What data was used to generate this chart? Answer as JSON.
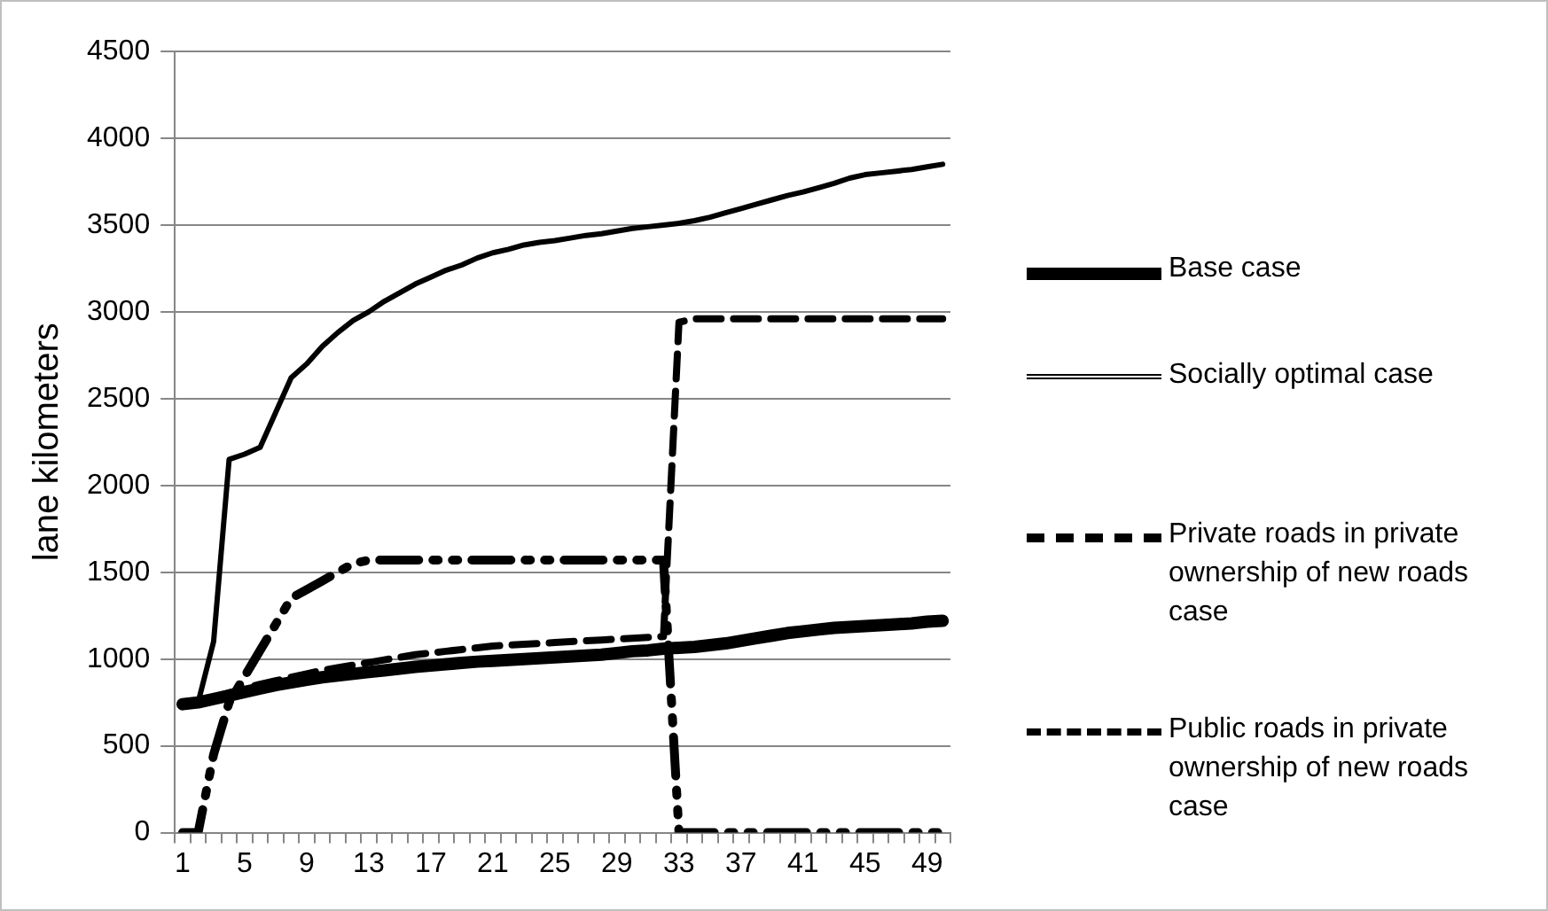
{
  "chart_data": {
    "type": "line",
    "ylabel": "lane kilometers",
    "categories": [
      "1",
      null,
      null,
      null,
      "5",
      null,
      null,
      null,
      "9",
      null,
      null,
      null,
      "13",
      null,
      null,
      null,
      "17",
      null,
      null,
      null,
      "21",
      null,
      null,
      null,
      "25",
      null,
      null,
      null,
      "29",
      null,
      null,
      null,
      "33",
      null,
      null,
      null,
      "37",
      null,
      null,
      null,
      "41",
      null,
      null,
      null,
      "45",
      null,
      null,
      null,
      "49",
      null
    ],
    "ylim": [
      0,
      4500
    ],
    "yticks": [
      0,
      500,
      1000,
      1500,
      2000,
      2500,
      3000,
      3500,
      4000,
      4500
    ],
    "grid": "y",
    "legend": "right",
    "marker": "none",
    "series": [
      {
        "name": "Base case",
        "color": "#000000",
        "line_style": "solid",
        "values": [
          740,
          750,
          770,
          790,
          810,
          830,
          850,
          865,
          880,
          895,
          905,
          915,
          925,
          935,
          945,
          955,
          962,
          970,
          978,
          985,
          990,
          995,
          1000,
          1005,
          1010,
          1015,
          1020,
          1025,
          1035,
          1045,
          1050,
          1060,
          1065,
          1070,
          1080,
          1090,
          1105,
          1120,
          1135,
          1150,
          1160,
          1170,
          1180,
          1185,
          1190,
          1195,
          1200,
          1205,
          1215,
          1220
        ]
      },
      {
        "name": "Socially optimal case",
        "color": "#000000",
        "line_style": "solid",
        "values": [
          750,
          750,
          1100,
          2150,
          2180,
          2220,
          2420,
          2620,
          2700,
          2800,
          2880,
          2950,
          3000,
          3060,
          3110,
          3160,
          3200,
          3240,
          3270,
          3310,
          3340,
          3360,
          3385,
          3400,
          3410,
          3425,
          3440,
          3450,
          3465,
          3480,
          3490,
          3500,
          3510,
          3525,
          3545,
          3570,
          3595,
          3620,
          3645,
          3670,
          3690,
          3715,
          3740,
          3770,
          3790,
          3800,
          3810,
          3820,
          3835,
          3850
        ]
      },
      {
        "name": "Private roads in private ownership of new roads case",
        "color": "#000000",
        "line_style": "dotted",
        "values": [
          0,
          0,
          450,
          750,
          900,
          1050,
          1200,
          1350,
          1400,
          1450,
          1500,
          1550,
          1570,
          1570,
          1570,
          1570,
          1570,
          1570,
          1570,
          1570,
          1570,
          1570,
          1570,
          1570,
          1570,
          1570,
          1570,
          1570,
          1570,
          1570,
          1570,
          1570,
          0,
          0,
          0,
          0,
          0,
          0,
          0,
          0,
          0,
          0,
          0,
          0,
          0,
          0,
          0,
          0,
          0,
          0
        ]
      },
      {
        "name": "Public roads in private ownership of new roads case",
        "color": "#000000",
        "line_style": "dashed",
        "values": [
          750,
          760,
          780,
          805,
          830,
          855,
          875,
          895,
          915,
          935,
          950,
          965,
          980,
          995,
          1010,
          1025,
          1035,
          1045,
          1055,
          1065,
          1075,
          1080,
          1085,
          1090,
          1095,
          1100,
          1105,
          1110,
          1115,
          1120,
          1125,
          1130,
          2940,
          2960,
          2960,
          2960,
          2960,
          2960,
          2960,
          2960,
          2960,
          2960,
          2960,
          2960,
          2960,
          2960,
          2960,
          2960,
          2960,
          2960
        ]
      }
    ]
  }
}
